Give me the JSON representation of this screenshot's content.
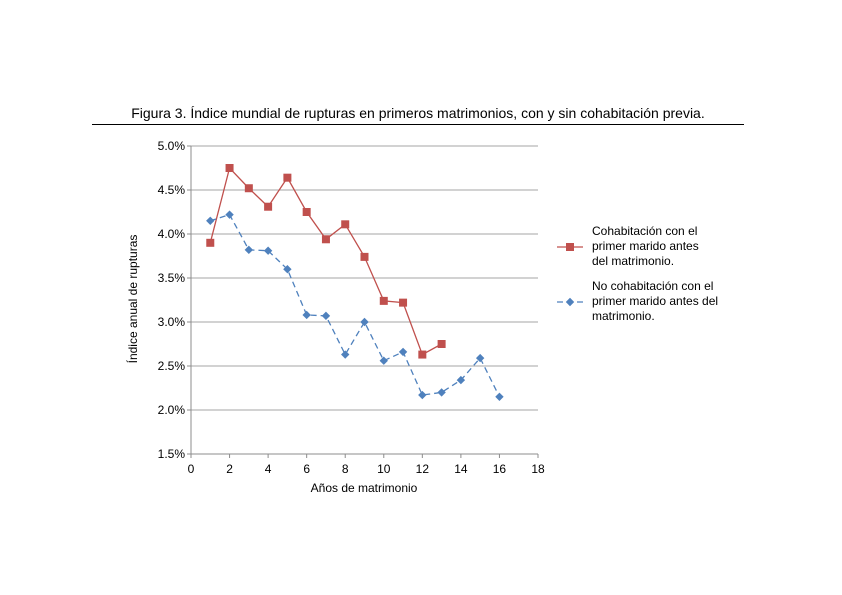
{
  "figure": {
    "title": "Figura 3. Índice mundial de rupturas en primeros matrimonios, con y sin cohabitación previa."
  },
  "colors": {
    "series_cohab": "#c0504d",
    "series_nocohab": "#4f81bd",
    "grid": "#a6a6a6",
    "axis": "#8c8c8c"
  },
  "chart_data": {
    "type": "line",
    "title": "",
    "xlabel": "Años de matrimonio",
    "ylabel": "Índice anual de rupturas",
    "xlim": [
      0,
      18
    ],
    "ylim": [
      1.5,
      5.0
    ],
    "x_ticks": [
      0,
      2,
      4,
      6,
      8,
      10,
      12,
      14,
      16,
      18
    ],
    "x_tick_labels": [
      "0",
      "2",
      "4",
      "6",
      "8",
      "10",
      "12",
      "14",
      "16",
      "18"
    ],
    "y_ticks": [
      1.5,
      2.0,
      2.5,
      3.0,
      3.5,
      4.0,
      4.5,
      5.0
    ],
    "y_tick_labels": [
      "1.5%",
      "2.0%",
      "2.5%",
      "3.0%",
      "3.5%",
      "4.0%",
      "4.5%",
      "5.0%"
    ],
    "grid": "horizontal",
    "legend_position": "right",
    "series": [
      {
        "name": "Cohabitación con el primer marido antes del matrimonio.",
        "legend_lines": [
          "Cohabitación con el",
          "primer marido antes",
          "del matrimonio."
        ],
        "marker": "square",
        "line_style": "solid",
        "x": [
          1,
          2,
          3,
          4,
          5,
          6,
          7,
          8,
          9,
          10,
          11,
          12,
          13
        ],
        "y": [
          3.9,
          4.75,
          4.52,
          4.31,
          4.64,
          4.25,
          3.94,
          4.11,
          3.74,
          3.24,
          3.22,
          2.63,
          2.75
        ]
      },
      {
        "name": "No cohabitación con el primer marido antes del matrimonio.",
        "legend_lines": [
          "No cohabitación con el",
          "primer marido antes del",
          "matrimonio."
        ],
        "marker": "diamond",
        "line_style": "dashed",
        "x": [
          1,
          2,
          3,
          4,
          5,
          6,
          7,
          8,
          9,
          10,
          11,
          12,
          13,
          14,
          15,
          16
        ],
        "y": [
          4.15,
          4.22,
          3.82,
          3.81,
          3.6,
          3.08,
          3.07,
          2.63,
          3.0,
          2.56,
          2.66,
          2.17,
          2.2,
          2.34,
          2.59,
          2.15
        ]
      }
    ]
  }
}
